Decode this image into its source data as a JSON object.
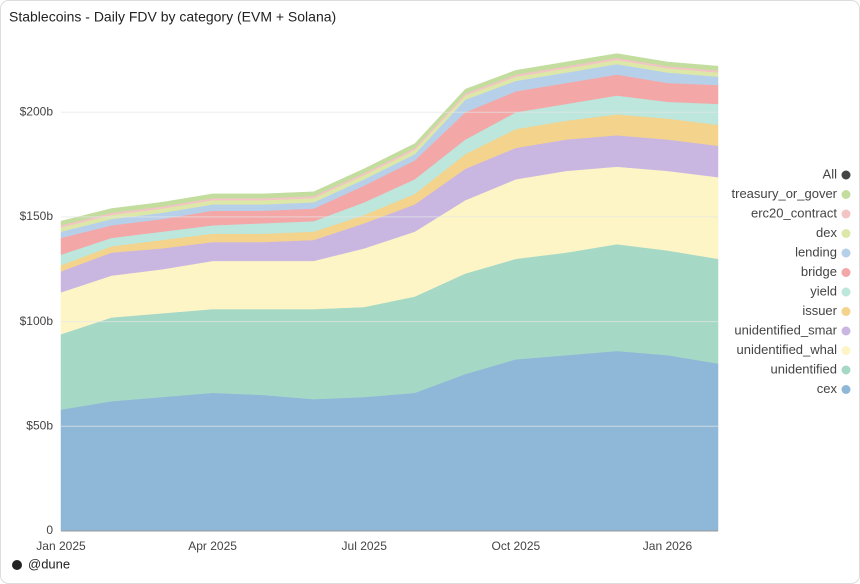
{
  "chart_data": {
    "type": "stacked_area",
    "title": "Stablecoins - Daily FDV by category (EVM + Solana)",
    "footer": "@dune",
    "categories": [
      "Jan 2025",
      null,
      null,
      "Apr 2025",
      null,
      null,
      "Jul 2025",
      null,
      null,
      "Oct 2025",
      null,
      null,
      "Jan 2026",
      null
    ],
    "ylim": [
      0,
      245
    ],
    "yticks": [
      0,
      {
        "value": 50,
        "label": "$50b"
      },
      {
        "value": 100,
        "label": "$100b"
      },
      {
        "value": 150,
        "label": "$150b"
      },
      {
        "value": 200,
        "label": "$200b"
      }
    ],
    "grid": true,
    "legend": "right",
    "series": [
      {
        "name": "cex",
        "color": "#8fb8d8",
        "values": [
          58,
          62,
          64,
          66,
          65,
          63,
          64,
          66,
          75,
          82,
          84,
          86,
          84,
          80
        ]
      },
      {
        "name": "unidentified",
        "color": "#a6d9c5",
        "values": [
          36,
          40,
          40,
          40,
          41,
          43,
          43,
          46,
          48,
          48,
          49,
          51,
          50,
          50
        ]
      },
      {
        "name": "unidentified_whal",
        "color": "#fdf5c6",
        "values": [
          20,
          20,
          21,
          23,
          23,
          23,
          28,
          31,
          35,
          38,
          39,
          37,
          38,
          39
        ]
      },
      {
        "name": "unidentified_smar",
        "color": "#c9b7e2",
        "values": [
          10,
          11,
          10,
          9,
          9,
          10,
          12,
          13,
          15,
          15,
          15,
          15,
          15,
          15
        ]
      },
      {
        "name": "issuer",
        "color": "#f4d38d",
        "values": [
          3,
          3,
          4,
          4,
          4,
          4,
          4,
          5,
          7,
          9,
          9,
          10,
          10,
          10
        ]
      },
      {
        "name": "yield",
        "color": "#bde6dc",
        "values": [
          5,
          4,
          4,
          4,
          5,
          5,
          6,
          7,
          7,
          8,
          8,
          9,
          8,
          10
        ]
      },
      {
        "name": "bridge",
        "color": "#f4a7a7",
        "values": [
          8,
          6,
          6,
          7,
          6,
          6,
          8,
          9,
          13,
          10,
          10,
          10,
          9,
          9
        ]
      },
      {
        "name": "lending",
        "color": "#b7d0ea",
        "values": [
          3,
          3,
          3,
          3,
          3,
          3,
          3,
          3,
          6,
          5,
          5,
          5,
          5,
          4
        ]
      },
      {
        "name": "dex",
        "color": "#dde8a8",
        "values": [
          2,
          2,
          2,
          2,
          2,
          2,
          2,
          2,
          2,
          2,
          2,
          2,
          2,
          2
        ]
      },
      {
        "name": "erc20_contract",
        "color": "#f2c4c4",
        "values": [
          1,
          1,
          1,
          1,
          1,
          1,
          1,
          1,
          1,
          1,
          1,
          1,
          1,
          1
        ]
      },
      {
        "name": "treasury_or_gover",
        "color": "#c2dd9e",
        "values": [
          2,
          2,
          2,
          2,
          2,
          2,
          2,
          2,
          2,
          2,
          2,
          2,
          2,
          2
        ]
      },
      {
        "name": "All",
        "color": "#444444"
      }
    ]
  }
}
